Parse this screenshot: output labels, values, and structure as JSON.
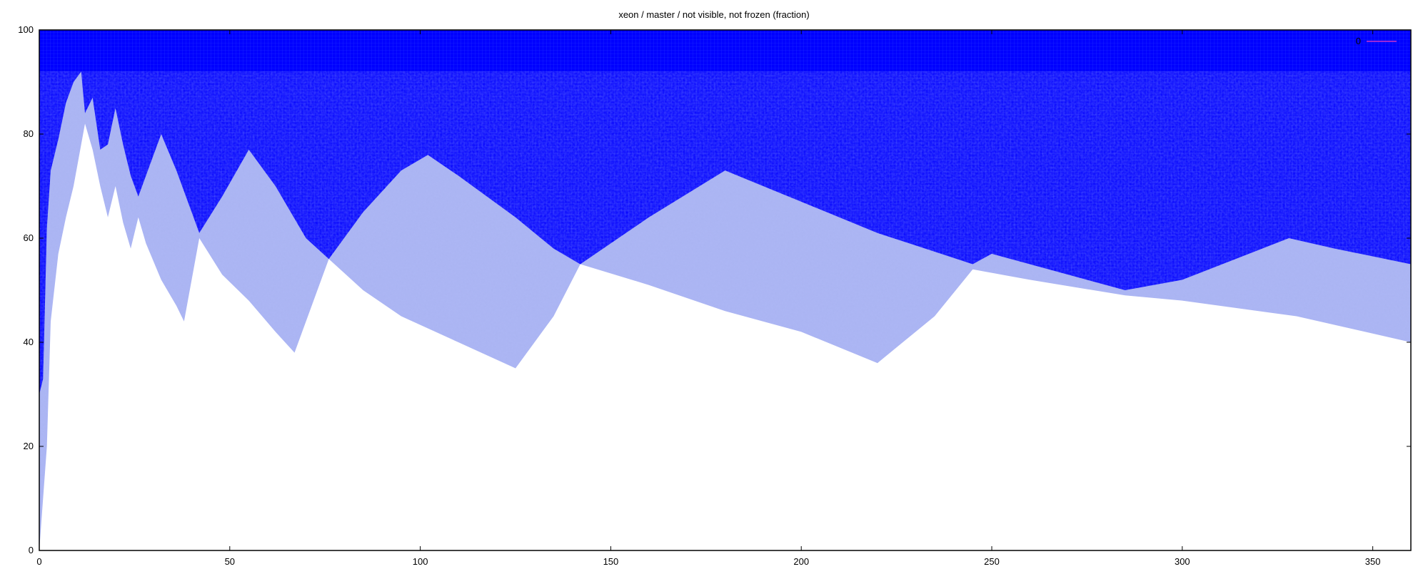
{
  "chart_data": {
    "type": "heatmap",
    "title": "xeon / master / not visible, not frozen (fraction)",
    "xlabel": "",
    "ylabel": "",
    "xlim": [
      0,
      360
    ],
    "ylim": [
      0,
      100
    ],
    "xticks": [
      0,
      50,
      100,
      150,
      200,
      250,
      300,
      350
    ],
    "yticks": [
      0,
      20,
      40,
      60,
      80,
      100
    ],
    "legend": {
      "label": "0",
      "position": "top-right",
      "color": "#cc33cc"
    },
    "colors": {
      "saturated": "#0000ff",
      "band": "#aab4f2",
      "empty": "#ffffff",
      "grid": "#3355ff"
    },
    "grid": true,
    "upper_boundary": {
      "x": [
        0,
        1,
        2,
        3,
        5,
        7,
        9,
        11,
        12,
        14,
        16,
        18,
        20,
        22,
        24,
        26,
        28,
        32,
        36,
        40,
        42,
        48,
        55,
        62,
        70,
        76,
        85,
        95,
        102,
        110,
        125,
        135,
        142,
        160,
        180,
        200,
        220,
        245,
        250,
        260,
        285,
        300,
        328,
        340,
        360
      ],
      "y": [
        30,
        33,
        62,
        73,
        79,
        86,
        90,
        92,
        84,
        87,
        77,
        78,
        85,
        78,
        72,
        68,
        72,
        80,
        73,
        65,
        61,
        68,
        77,
        70,
        60,
        56,
        65,
        73,
        76,
        72,
        64,
        58,
        55,
        64,
        73,
        67,
        61,
        55,
        57,
        55,
        50,
        52,
        60,
        58,
        55
      ]
    },
    "lower_boundary": {
      "x": [
        0,
        1,
        2,
        3,
        5,
        7,
        9,
        11,
        12,
        14,
        16,
        18,
        20,
        22,
        24,
        26,
        28,
        32,
        36,
        38,
        42,
        48,
        55,
        62,
        67,
        72,
        76,
        85,
        95,
        110,
        125,
        135,
        142,
        160,
        180,
        200,
        220,
        235,
        245,
        260,
        285,
        300,
        330,
        360
      ],
      "y": [
        0,
        10,
        20,
        44,
        57,
        64,
        70,
        78,
        82,
        77,
        70,
        64,
        70,
        63,
        58,
        64,
        59,
        52,
        47,
        44,
        60,
        53,
        48,
        42,
        38,
        48,
        56,
        50,
        45,
        40,
        35,
        45,
        55,
        51,
        46,
        42,
        36,
        45,
        54,
        52,
        49,
        48,
        45,
        40
      ]
    }
  }
}
